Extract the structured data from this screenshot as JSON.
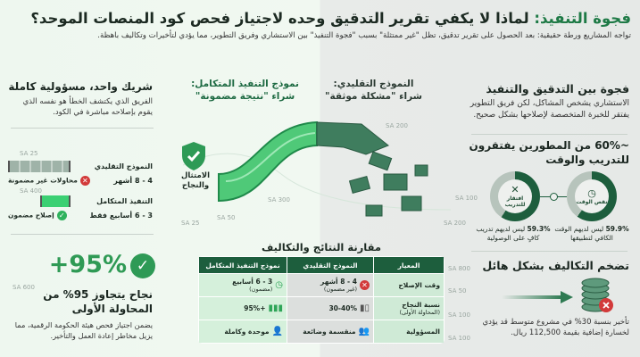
{
  "header": {
    "title_accent": "فجوة التنفيذ:",
    "title_rest": " لماذا لا يكفي تقرير التدقيق وحده لاجتياز فحص كود المنصات الموحد؟",
    "subtitle": "تواجه المشاريع ورطة حقيقية: بعد الحصول على تقرير تدقيق، تظل \"غير ممتثلة\" بسبب \"فجوة التنفيذ\" بين الاستشاري وفريق التطوير، مما يؤدي لتأخيرات وتكاليف باهظة."
  },
  "right": {
    "gap_title": "فجوة بين التدقيق والتنفيذ",
    "gap_text": "الاستشاري يشخص المشاكل، لكن فريق التطوير يفتقر للخبرة المتخصصة لإصلاحها بشكل صحيح.",
    "stat_title": "~60%  من المطورين يفتقرون للتدريب والوقت",
    "donuts": [
      {
        "label": "نقص الوقت",
        "icon": "clock-icon",
        "percent": 59.9,
        "caption_value": "59.9%",
        "caption": "ليس لديهم الوقت الكافي لتطبيقها"
      },
      {
        "label": "افتقار للتدريب",
        "icon": "tools-icon",
        "percent": 59.3,
        "caption_value": "59.3%",
        "caption": "ليس لديهم تدريب كافٍ على الوصولية"
      }
    ],
    "cost_title": "تضخم التكاليف بشكل هائل",
    "cost_text": "تأخير بنسبة 30% في مشروع متوسط قد يؤدي لخسارة إضافية بقيمة 112,500 ريال."
  },
  "left": {
    "partner_title": "شريك واحد، مسؤولية كاملة",
    "partner_text": "الفريق الذي يكتشف الخطأ هو نفسه الذي يقوم بإصلاحه مباشرة في الكود.",
    "traditional_label": "النموذج التقليدي",
    "traditional_time": "4 - 8 أشهر",
    "traditional_note": "محاولات غير مضمونة",
    "integrated_label": "التنفيذ المتكامل",
    "integrated_time": "3 - 6 أسابيع فقط",
    "integrated_note": "إصلاح مضمون",
    "big_stat": "+95%",
    "success_title": "نجاح يتجاوز 95% من المحاولة الأولى",
    "success_text": "يضمن اجتياز فحص هيئة الحكومة الرقمية، مما يزيل مخاطر إعادة العمل والتأخير."
  },
  "middle": {
    "integrated_head_1": "نموذج التنفيذ المتكامل:",
    "integrated_head_2": "شراء \"نتيجة مضمونة\"",
    "traditional_head_1": "النموذج التقليدي:",
    "traditional_head_2": "شراء \"مشكلة موثقة\"",
    "shield_label": "الامتثال والنجاح"
  },
  "table": {
    "title": "مقارنة النتائج والتكاليف",
    "headers": [
      "المعيار",
      "النموذج التقليدي",
      "نموذج التنفيذ المتكامل"
    ],
    "rows": [
      {
        "criterion": "وقت الإصلاح",
        "criterion_sub": "",
        "trad": "4 - 8 أشهر",
        "trad_sub": "(غير مضمون)",
        "int": "3 - 6 أسابيع",
        "int_sub": "(مضمون)"
      },
      {
        "criterion": "نسبة النجاح",
        "criterion_sub": "(المحاولة الأولى)",
        "trad": "30-40%",
        "trad_sub": "",
        "int": "+95%",
        "int_sub": ""
      },
      {
        "criterion": "المسؤولية",
        "criterion_sub": "",
        "trad": "منقسمة وضائعة",
        "trad_sub": "",
        "int": "موحدة وكاملة",
        "int_sub": ""
      }
    ]
  },
  "sa_labels": [
    "SA 25",
    "SA 400",
    "SA 25",
    "SA 50",
    "SA 300",
    "SA 200",
    "SA 100",
    "SA 200",
    "SA 600",
    "SA 800",
    "SA 50",
    "SA 100",
    "SA 100"
  ],
  "colors": {
    "accent": "#1e7a46",
    "dark_green": "#1d5e3d",
    "bright_green": "#3bd073",
    "error": "#d23a3a"
  }
}
